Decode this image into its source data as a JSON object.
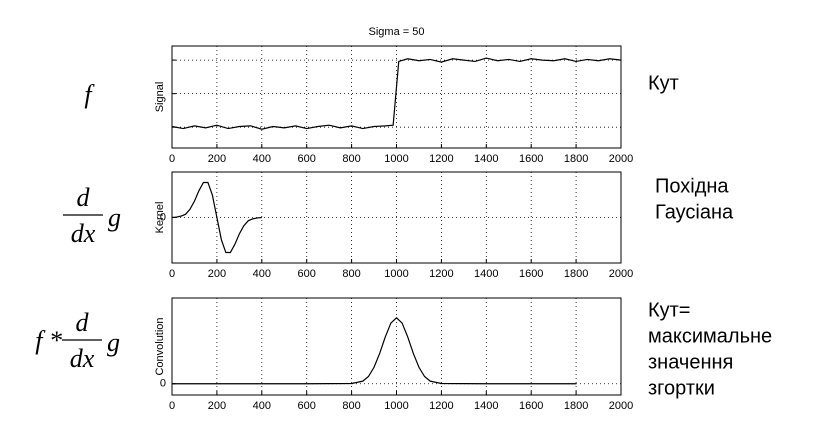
{
  "chart_data": [
    {
      "type": "line",
      "title": "Sigma = 50",
      "ylabel": "Signal",
      "formula": {
        "prefix": "f"
      },
      "annotation_lines": [
        "Кут"
      ],
      "x": [
        0,
        50,
        100,
        150,
        200,
        250,
        300,
        350,
        400,
        450,
        500,
        550,
        600,
        650,
        700,
        750,
        800,
        850,
        900,
        950,
        985,
        1010,
        1050,
        1100,
        1150,
        1200,
        1250,
        1300,
        1350,
        1400,
        1450,
        1500,
        1550,
        1600,
        1650,
        1700,
        1750,
        1800,
        1850,
        1900,
        1950,
        2000
      ],
      "series": [
        {
          "color": "#000000",
          "values": [
            0.01,
            -0.02,
            0.02,
            -0.01,
            0.03,
            -0.02,
            0.01,
            0.02,
            -0.03,
            0.01,
            -0.01,
            0.02,
            -0.02,
            0.01,
            0.03,
            -0.01,
            0.02,
            -0.02,
            0.01,
            0.02,
            0.03,
            0.98,
            1.02,
            0.99,
            1.01,
            0.97,
            1.02,
            1.0,
            0.98,
            1.03,
            0.99,
            1.01,
            0.98,
            1.02,
            1.0,
            0.99,
            1.02,
            0.98,
            1.01,
            0.99,
            1.02,
            1.0
          ]
        }
      ],
      "xlim": [
        0,
        2000
      ],
      "xticks": [
        0,
        200,
        400,
        600,
        800,
        1000,
        1200,
        1400,
        1600,
        1800,
        2000
      ],
      "ylim": [
        -0.31,
        1.21
      ],
      "ygrid": [
        0,
        0.5,
        1
      ],
      "grid": true
    },
    {
      "type": "line",
      "ylabel": "Kernel",
      "formula": {
        "numerator": "d",
        "denominator": "dx",
        "suffix": "g"
      },
      "annotation_lines": [
        "Похідна",
        "Гаусіана"
      ],
      "x": [
        0,
        20,
        40,
        60,
        80,
        100,
        120,
        140,
        160,
        180,
        200,
        220,
        240,
        260,
        280,
        300,
        320,
        340,
        360,
        380,
        400
      ],
      "series": [
        {
          "color": "#000000",
          "values": [
            0,
            0.01,
            0.03,
            0.07,
            0.18,
            0.36,
            0.59,
            0.77,
            0.77,
            0.49,
            0,
            -0.49,
            -0.77,
            -0.77,
            -0.59,
            -0.36,
            -0.18,
            -0.07,
            -0.03,
            -0.01,
            0
          ]
        }
      ],
      "xlim": [
        0,
        2000
      ],
      "xticks": [
        0,
        200,
        400,
        600,
        800,
        1000,
        1200,
        1400,
        1600,
        1800,
        2000
      ],
      "ylim": [
        -1,
        1
      ],
      "yticks": [
        0
      ],
      "grid": true
    },
    {
      "type": "line",
      "ylabel": "Convolution",
      "formula": {
        "prefix": "f *",
        "numerator": "d",
        "denominator": "dx",
        "suffix": "g"
      },
      "annotation_lines": [
        "Кут=",
        "максимальне",
        "значення",
        "згортки"
      ],
      "x": [
        0,
        200,
        400,
        600,
        800,
        850,
        875,
        900,
        925,
        950,
        975,
        1000,
        1025,
        1050,
        1075,
        1100,
        1125,
        1150,
        1200,
        1400,
        1600,
        1800
      ],
      "series": [
        {
          "color": "#000000",
          "values": [
            0,
            0,
            0,
            0,
            0.004,
            0.04,
            0.11,
            0.25,
            0.46,
            0.71,
            0.92,
            1,
            0.92,
            0.71,
            0.46,
            0.25,
            0.11,
            0.04,
            0.004,
            0,
            0,
            0
          ]
        }
      ],
      "xlim": [
        0,
        2000
      ],
      "xticks": [
        0,
        200,
        400,
        600,
        800,
        1000,
        1200,
        1400,
        1600,
        1800,
        2000
      ],
      "ylim": [
        -0.17,
        1.3
      ],
      "yticks": [
        0
      ],
      "grid": true
    }
  ]
}
